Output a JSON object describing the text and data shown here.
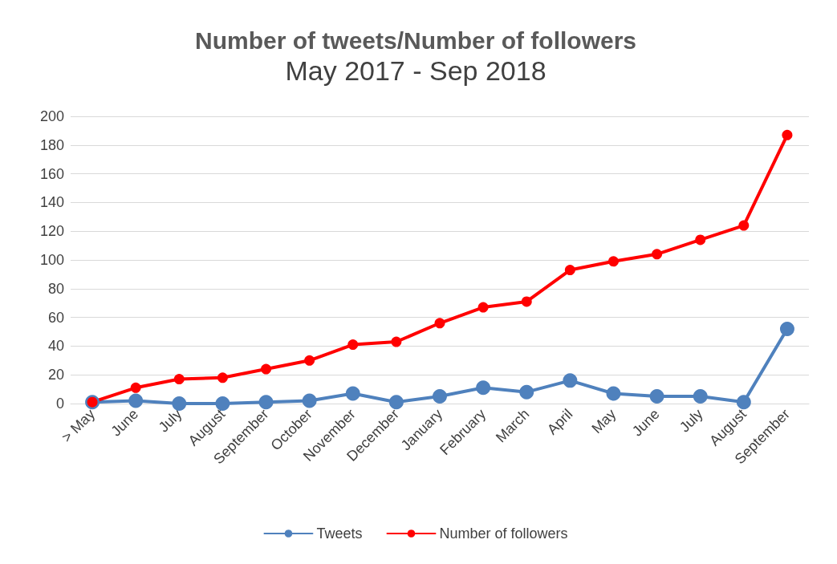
{
  "chart_data": {
    "type": "line",
    "title": "Number of tweets/Number of followers",
    "subtitle": "May 2017 - Sep 2018",
    "categories": [
      "> May",
      "June",
      "July",
      "August",
      "September",
      "October",
      "November",
      "December",
      "January",
      "February",
      "March",
      "April",
      "May",
      "June",
      "July",
      "August",
      "September"
    ],
    "series": [
      {
        "name": "Tweets",
        "color": "#4f81bd",
        "values": [
          1,
          2,
          0,
          0,
          1,
          2,
          7,
          1,
          5,
          11,
          8,
          16,
          7,
          5,
          5,
          1,
          52
        ]
      },
      {
        "name": "Number of followers",
        "color": "#ff0000",
        "values": [
          1,
          11,
          17,
          18,
          24,
          30,
          41,
          43,
          56,
          67,
          71,
          93,
          99,
          104,
          114,
          124,
          187
        ]
      }
    ],
    "ylim": [
      0,
      200
    ],
    "yticks": [
      0,
      20,
      40,
      60,
      80,
      100,
      120,
      140,
      160,
      180,
      200
    ],
    "grid": "y",
    "legend": "bottom",
    "marker": "circle",
    "line_style": "solid"
  }
}
